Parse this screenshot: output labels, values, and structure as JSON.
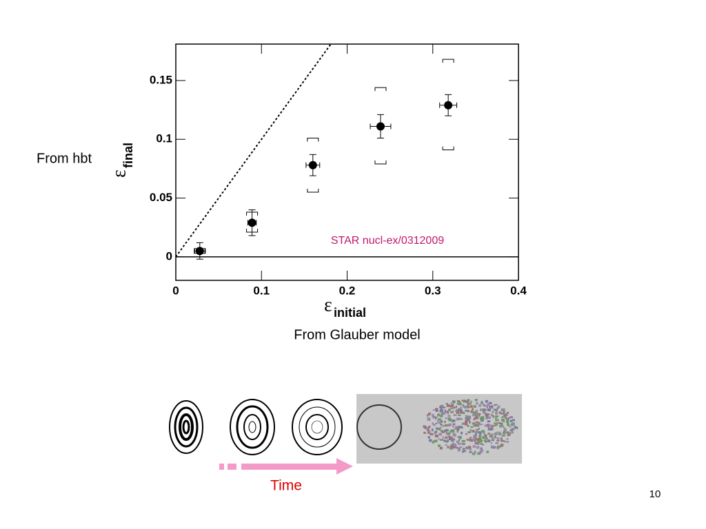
{
  "chart_data": {
    "type": "scatter",
    "x": [
      0.028,
      0.089,
      0.16,
      0.239,
      0.318
    ],
    "y": [
      0.005,
      0.029,
      0.078,
      0.111,
      0.129
    ],
    "xerr": [
      0.006,
      0.005,
      0.008,
      0.012,
      0.01
    ],
    "yerr": [
      0.007,
      0.011,
      0.009,
      0.01,
      0.009
    ],
    "sys_low": [
      0.003,
      0.021,
      0.055,
      0.079,
      0.091
    ],
    "sys_high": [
      0.007,
      0.038,
      0.101,
      0.144,
      0.168
    ],
    "color": "#000000",
    "xlim": [
      0,
      0.4
    ],
    "ylim": [
      -0.02,
      0.181
    ],
    "xticks": [
      0,
      0.1,
      0.2,
      0.3,
      0.4
    ],
    "yticks": [
      0,
      0.05,
      0.1,
      0.15
    ],
    "xlabel": {
      "symbol": "ε",
      "subscript": "initial"
    },
    "ylabel": {
      "symbol": "ε",
      "subscript": "final"
    },
    "annotation": "STAR nucl-ex/0312009",
    "annotation_color": "#c0186a",
    "zero_line": true,
    "identity_line": true
  },
  "notes": {
    "y_source": "From hbt",
    "x_source": "From Glauber model"
  },
  "timeline": {
    "label": "Time"
  },
  "slide_number": "10"
}
